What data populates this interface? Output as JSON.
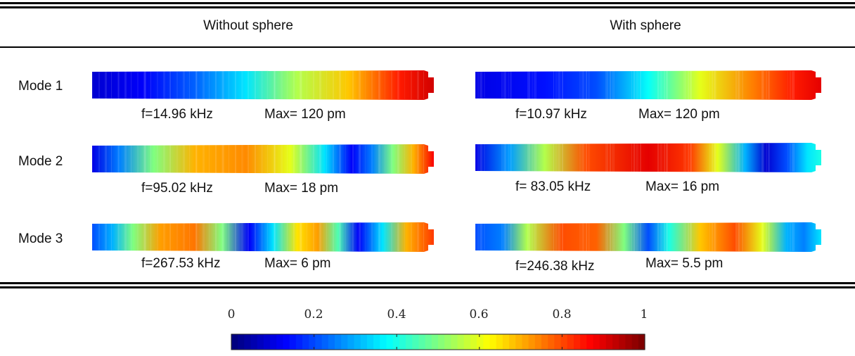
{
  "headers": {
    "left": "Without sphere",
    "right": "With sphere"
  },
  "modes": [
    {
      "label": "Mode 1",
      "without": {
        "freq": "f=14.96 kHz",
        "max": "Max= 120 pm",
        "stops": [
          [
            0,
            0.08
          ],
          [
            0.15,
            0.12
          ],
          [
            0.3,
            0.22
          ],
          [
            0.45,
            0.35
          ],
          [
            0.6,
            0.55
          ],
          [
            0.75,
            0.68
          ],
          [
            0.9,
            0.85
          ],
          [
            1,
            0.92
          ]
        ]
      },
      "with": {
        "freq": "f=10.97 kHz",
        "max": "Max= 120 pm",
        "stops": [
          [
            0,
            0.1
          ],
          [
            0.2,
            0.14
          ],
          [
            0.35,
            0.2
          ],
          [
            0.5,
            0.38
          ],
          [
            0.65,
            0.6
          ],
          [
            0.8,
            0.75
          ],
          [
            0.92,
            0.85
          ],
          [
            1,
            0.9
          ]
        ]
      }
    },
    {
      "label": "Mode 2",
      "without": {
        "freq": "f=95.02 kHz",
        "max": "Max= 18 pm",
        "stops": [
          [
            0,
            0.1
          ],
          [
            0.08,
            0.25
          ],
          [
            0.18,
            0.5
          ],
          [
            0.3,
            0.7
          ],
          [
            0.45,
            0.74
          ],
          [
            0.58,
            0.6
          ],
          [
            0.68,
            0.35
          ],
          [
            0.76,
            0.12
          ],
          [
            0.82,
            0.25
          ],
          [
            0.88,
            0.5
          ],
          [
            0.94,
            0.7
          ],
          [
            1,
            0.88
          ]
        ]
      },
      "with": {
        "freq": "f= 83.05 kHz",
        "max": "Max= 16 pm",
        "stops": [
          [
            0,
            0.1
          ],
          [
            0.1,
            0.28
          ],
          [
            0.2,
            0.55
          ],
          [
            0.32,
            0.8
          ],
          [
            0.5,
            0.9
          ],
          [
            0.62,
            0.82
          ],
          [
            0.7,
            0.6
          ],
          [
            0.78,
            0.3
          ],
          [
            0.84,
            0.08
          ],
          [
            0.9,
            0.2
          ],
          [
            0.96,
            0.35
          ],
          [
            1,
            0.4
          ]
        ]
      }
    },
    {
      "label": "Mode 3",
      "without": {
        "freq": "f=267.53 kHz",
        "max": "Max= 6 pm",
        "stops": [
          [
            0,
            0.2
          ],
          [
            0.06,
            0.3
          ],
          [
            0.12,
            0.5
          ],
          [
            0.2,
            0.72
          ],
          [
            0.3,
            0.76
          ],
          [
            0.38,
            0.5
          ],
          [
            0.46,
            0.12
          ],
          [
            0.53,
            0.35
          ],
          [
            0.6,
            0.65
          ],
          [
            0.66,
            0.72
          ],
          [
            0.72,
            0.45
          ],
          [
            0.78,
            0.12
          ],
          [
            0.85,
            0.35
          ],
          [
            0.92,
            0.7
          ],
          [
            1,
            0.82
          ]
        ]
      },
      "with": {
        "freq": "f=246.38 kHz",
        "max": "Max= 5.5 pm",
        "stops": [
          [
            0,
            0.2
          ],
          [
            0.08,
            0.25
          ],
          [
            0.15,
            0.55
          ],
          [
            0.25,
            0.8
          ],
          [
            0.35,
            0.78
          ],
          [
            0.43,
            0.5
          ],
          [
            0.5,
            0.2
          ],
          [
            0.56,
            0.4
          ],
          [
            0.65,
            0.68
          ],
          [
            0.75,
            0.8
          ],
          [
            0.83,
            0.6
          ],
          [
            0.9,
            0.3
          ],
          [
            0.95,
            0.25
          ],
          [
            1,
            0.35
          ]
        ]
      }
    }
  ],
  "colorbar": {
    "ticks": [
      "0",
      "0.2",
      "0.4",
      "0.6",
      "0.8",
      "1"
    ],
    "colormap": "jet"
  }
}
